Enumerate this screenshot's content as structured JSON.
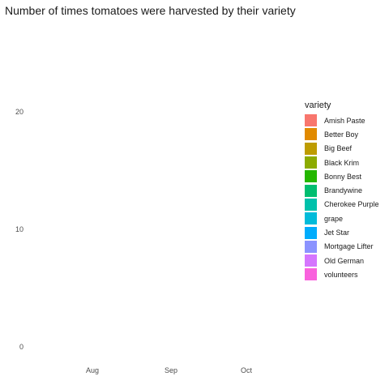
{
  "chart_data": {
    "type": "bar",
    "title": "Number of times tomatoes were harvested by their variety",
    "xlabel": "",
    "ylabel": "",
    "x_ticks": [
      "Aug",
      "Sep",
      "Oct"
    ],
    "y_ticks": [
      0,
      10,
      20
    ],
    "ylim": [
      0,
      20
    ],
    "grid": false,
    "legend_position": "right",
    "legend_title": "variety",
    "series": [
      {
        "name": "Amish Paste",
        "color": "#F8766D",
        "values": []
      },
      {
        "name": "Better Boy",
        "color": "#E18A00",
        "values": []
      },
      {
        "name": "Big Beef",
        "color": "#BE9C00",
        "values": []
      },
      {
        "name": "Black Krim",
        "color": "#8CAB00",
        "values": []
      },
      {
        "name": "Bonny Best",
        "color": "#24B700",
        "values": []
      },
      {
        "name": "Brandywine",
        "color": "#00BE70",
        "values": []
      },
      {
        "name": "Cherokee Purple",
        "color": "#00C1AB",
        "values": []
      },
      {
        "name": "grape",
        "color": "#00BBDA",
        "values": []
      },
      {
        "name": "Jet Star",
        "color": "#00ACFC",
        "values": []
      },
      {
        "name": "Mortgage Lifter",
        "color": "#8B93FF",
        "values": []
      },
      {
        "name": "Old German",
        "color": "#D575FE",
        "values": []
      },
      {
        "name": "volunteers",
        "color": "#F962DD",
        "values": []
      }
    ]
  }
}
